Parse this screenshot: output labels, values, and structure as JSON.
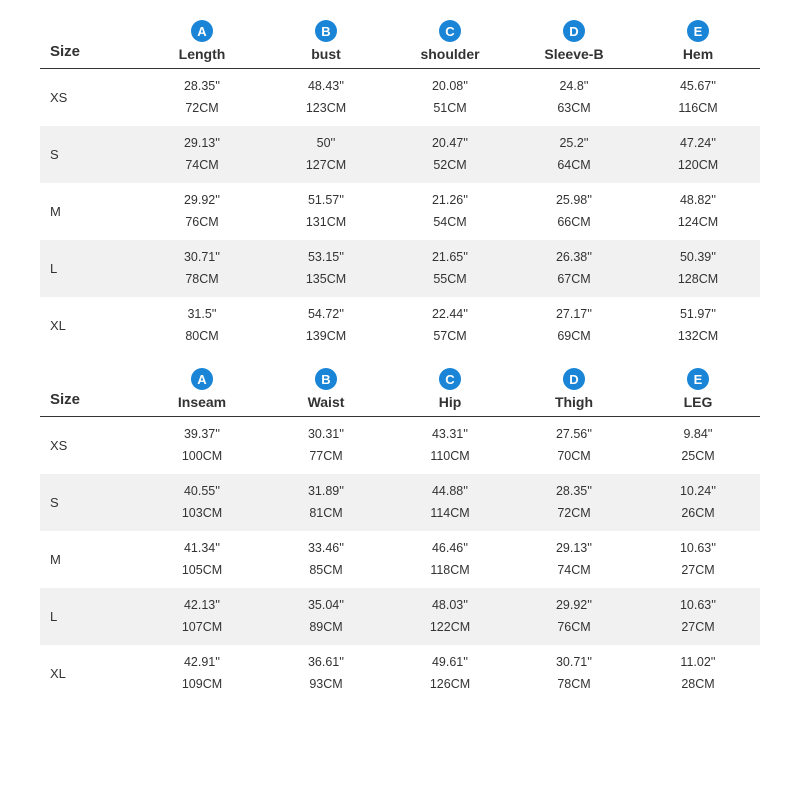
{
  "styling": {
    "circle_bg": "#1a85d6",
    "circle_text": "#ffffff",
    "header_border": "#333333",
    "alt_row_bg": "#f1f1f1",
    "text_color": "#333333",
    "background": "#ffffff",
    "header_font_size": 15,
    "label_font_size": 14,
    "cell_font_size": 12.5
  },
  "tables": [
    {
      "size_header": "Size",
      "columns": [
        {
          "letter": "A",
          "label": "Length"
        },
        {
          "letter": "B",
          "label": "bust"
        },
        {
          "letter": "C",
          "label": "shoulder"
        },
        {
          "letter": "D",
          "label": "Sleeve-B"
        },
        {
          "letter": "E",
          "label": "Hem"
        }
      ],
      "rows": [
        {
          "size": "XS",
          "alt": false,
          "cells": [
            {
              "in": "28.35''",
              "cm": "72CM"
            },
            {
              "in": "48.43''",
              "cm": "123CM"
            },
            {
              "in": "20.08''",
              "cm": "51CM"
            },
            {
              "in": "24.8''",
              "cm": "63CM"
            },
            {
              "in": "45.67''",
              "cm": "116CM"
            }
          ]
        },
        {
          "size": "S",
          "alt": true,
          "cells": [
            {
              "in": "29.13''",
              "cm": "74CM"
            },
            {
              "in": "50''",
              "cm": "127CM"
            },
            {
              "in": "20.47''",
              "cm": "52CM"
            },
            {
              "in": "25.2''",
              "cm": "64CM"
            },
            {
              "in": "47.24''",
              "cm": "120CM"
            }
          ]
        },
        {
          "size": "M",
          "alt": false,
          "cells": [
            {
              "in": "29.92''",
              "cm": "76CM"
            },
            {
              "in": "51.57''",
              "cm": "131CM"
            },
            {
              "in": "21.26''",
              "cm": "54CM"
            },
            {
              "in": "25.98''",
              "cm": "66CM"
            },
            {
              "in": "48.82''",
              "cm": "124CM"
            }
          ]
        },
        {
          "size": "L",
          "alt": true,
          "cells": [
            {
              "in": "30.71''",
              "cm": "78CM"
            },
            {
              "in": "53.15''",
              "cm": "135CM"
            },
            {
              "in": "21.65''",
              "cm": "55CM"
            },
            {
              "in": "26.38''",
              "cm": "67CM"
            },
            {
              "in": "50.39''",
              "cm": "128CM"
            }
          ]
        },
        {
          "size": "XL",
          "alt": false,
          "cells": [
            {
              "in": "31.5''",
              "cm": "80CM"
            },
            {
              "in": "54.72''",
              "cm": "139CM"
            },
            {
              "in": "22.44''",
              "cm": "57CM"
            },
            {
              "in": "27.17''",
              "cm": "69CM"
            },
            {
              "in": "51.97''",
              "cm": "132CM"
            }
          ]
        }
      ]
    },
    {
      "size_header": "Size",
      "columns": [
        {
          "letter": "A",
          "label": "Inseam"
        },
        {
          "letter": "B",
          "label": "Waist"
        },
        {
          "letter": "C",
          "label": "Hip"
        },
        {
          "letter": "D",
          "label": "Thigh"
        },
        {
          "letter": "E",
          "label": "LEG"
        }
      ],
      "rows": [
        {
          "size": "XS",
          "alt": false,
          "cells": [
            {
              "in": "39.37''",
              "cm": "100CM"
            },
            {
              "in": "30.31''",
              "cm": "77CM"
            },
            {
              "in": "43.31''",
              "cm": "110CM"
            },
            {
              "in": "27.56''",
              "cm": "70CM"
            },
            {
              "in": "9.84''",
              "cm": "25CM"
            }
          ]
        },
        {
          "size": "S",
          "alt": true,
          "cells": [
            {
              "in": "40.55''",
              "cm": "103CM"
            },
            {
              "in": "31.89''",
              "cm": "81CM"
            },
            {
              "in": "44.88''",
              "cm": "114CM"
            },
            {
              "in": "28.35''",
              "cm": "72CM"
            },
            {
              "in": "10.24''",
              "cm": "26CM"
            }
          ]
        },
        {
          "size": "M",
          "alt": false,
          "cells": [
            {
              "in": "41.34''",
              "cm": "105CM"
            },
            {
              "in": "33.46''",
              "cm": "85CM"
            },
            {
              "in": "46.46''",
              "cm": "118CM"
            },
            {
              "in": "29.13''",
              "cm": "74CM"
            },
            {
              "in": "10.63''",
              "cm": "27CM"
            }
          ]
        },
        {
          "size": "L",
          "alt": true,
          "cells": [
            {
              "in": "42.13''",
              "cm": "107CM"
            },
            {
              "in": "35.04''",
              "cm": "89CM"
            },
            {
              "in": "48.03''",
              "cm": "122CM"
            },
            {
              "in": "29.92''",
              "cm": "76CM"
            },
            {
              "in": "10.63''",
              "cm": "27CM"
            }
          ]
        },
        {
          "size": "XL",
          "alt": false,
          "cells": [
            {
              "in": "42.91''",
              "cm": "109CM"
            },
            {
              "in": "36.61''",
              "cm": "93CM"
            },
            {
              "in": "49.61''",
              "cm": "126CM"
            },
            {
              "in": "30.71''",
              "cm": "78CM"
            },
            {
              "in": "11.02''",
              "cm": "28CM"
            }
          ]
        }
      ]
    }
  ]
}
